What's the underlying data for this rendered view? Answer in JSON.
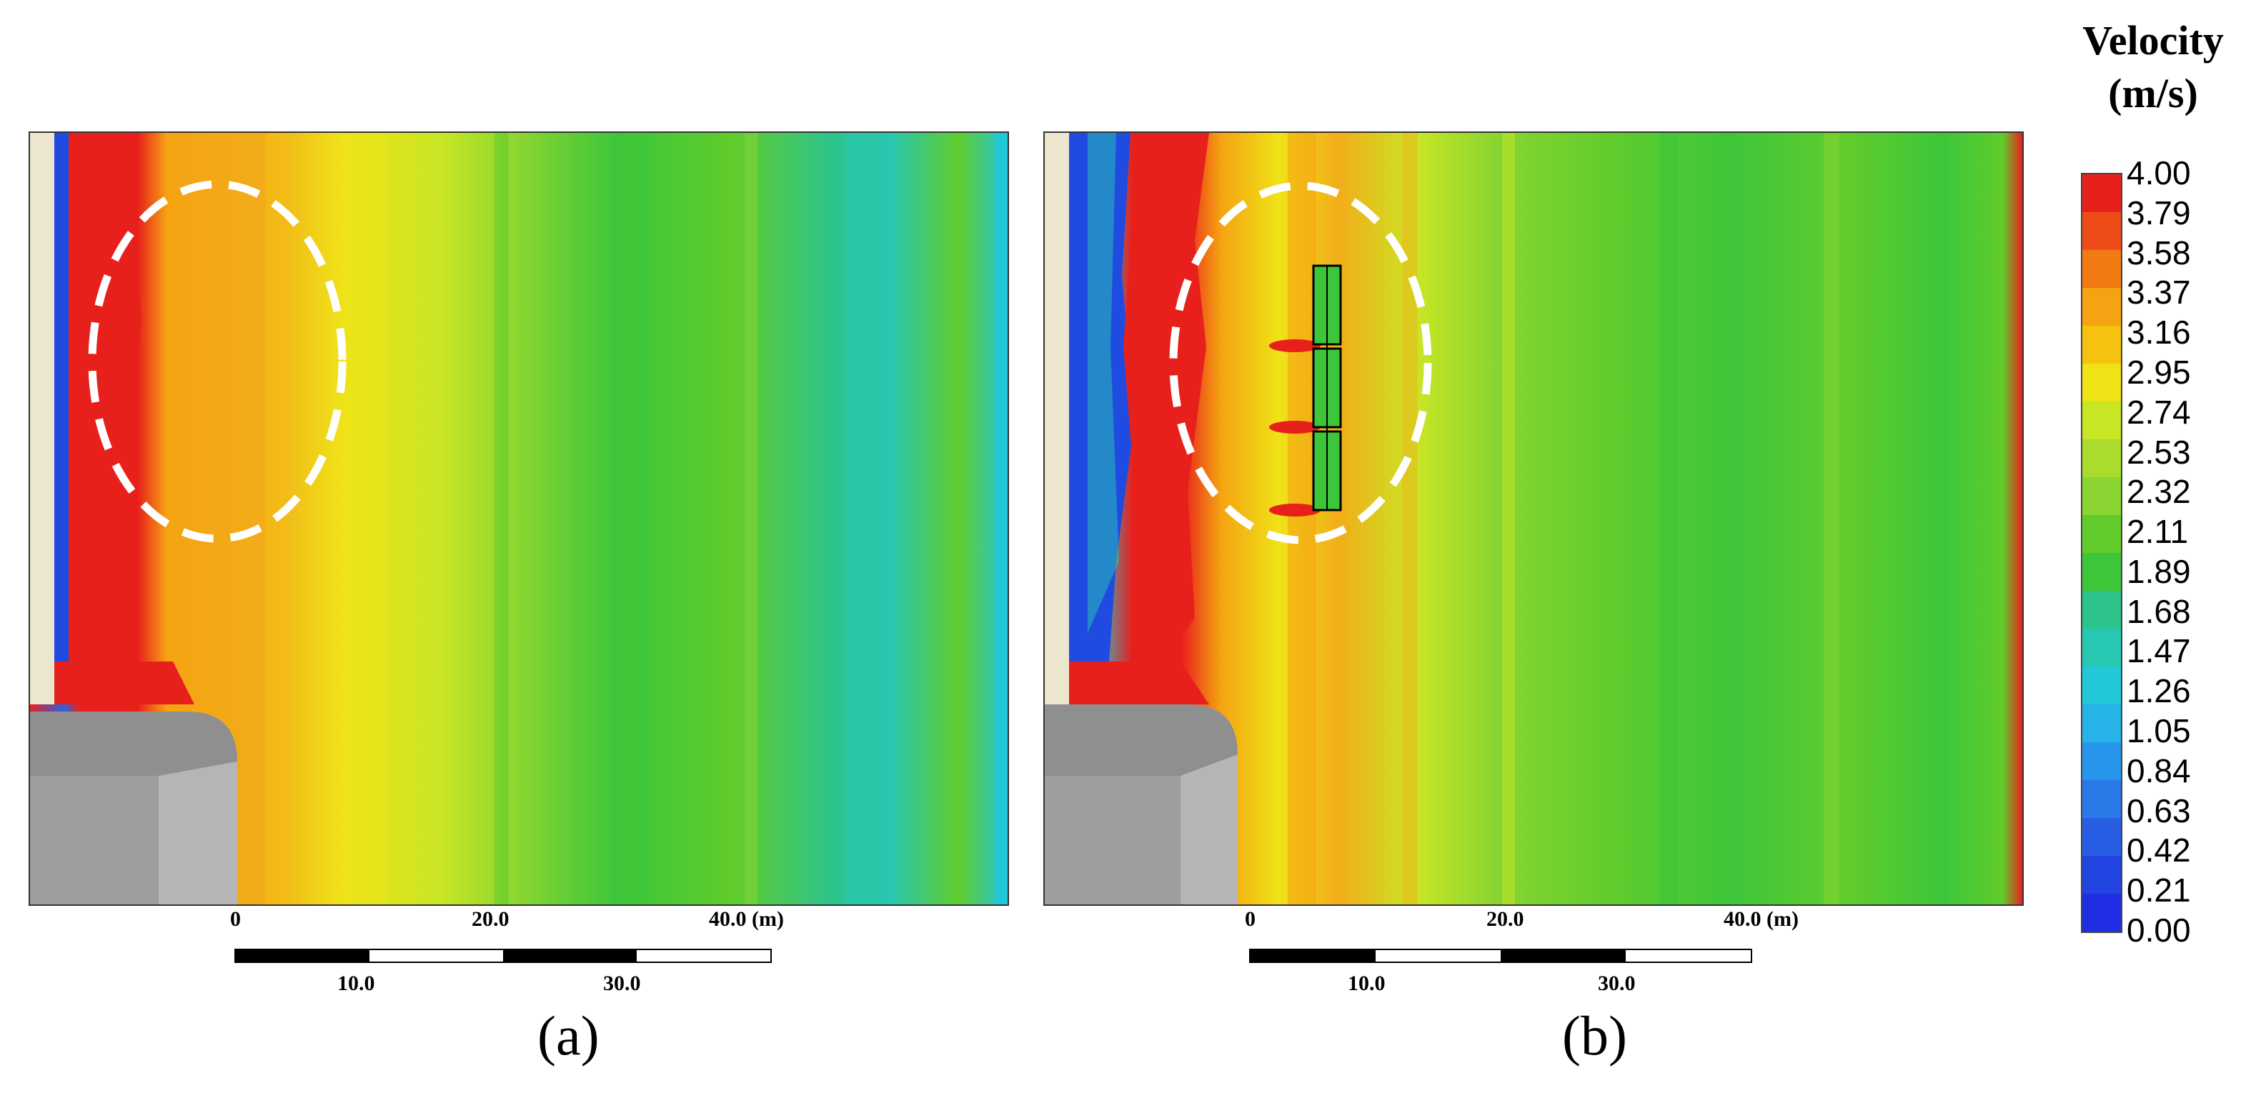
{
  "legend": {
    "title_line1": "Velocity",
    "title_line2": "(m/s)",
    "ticks": [
      "4.00",
      "3.79",
      "3.58",
      "3.37",
      "3.16",
      "2.95",
      "2.74",
      "2.53",
      "2.32",
      "2.11",
      "1.89",
      "1.68",
      "1.47",
      "1.26",
      "1.05",
      "0.84",
      "0.63",
      "0.42",
      "0.21",
      "0.00"
    ],
    "colors": [
      "#e8201c",
      "#ee4d1a",
      "#f27a12",
      "#f5a312",
      "#f6c210",
      "#efe318",
      "#c9e624",
      "#a9dc2c",
      "#8ad531",
      "#61cc2c",
      "#3dc63a",
      "#2dc48c",
      "#28c7b2",
      "#22c7d8",
      "#26b3e8",
      "#2896ea",
      "#2b79e8",
      "#285ee4",
      "#2244e0",
      "#1f2ee2"
    ]
  },
  "panels": {
    "a": {
      "label": "(a)",
      "scale_top": [
        "0",
        "20.0",
        "40.0 (m)"
      ],
      "scale_bottom": [
        "10.0",
        "30.0"
      ]
    },
    "b": {
      "label": "(b)",
      "scale_top": [
        "0",
        "20.0",
        "40.0 (m)"
      ],
      "scale_bottom": [
        "10.0",
        "30.0"
      ]
    }
  }
}
